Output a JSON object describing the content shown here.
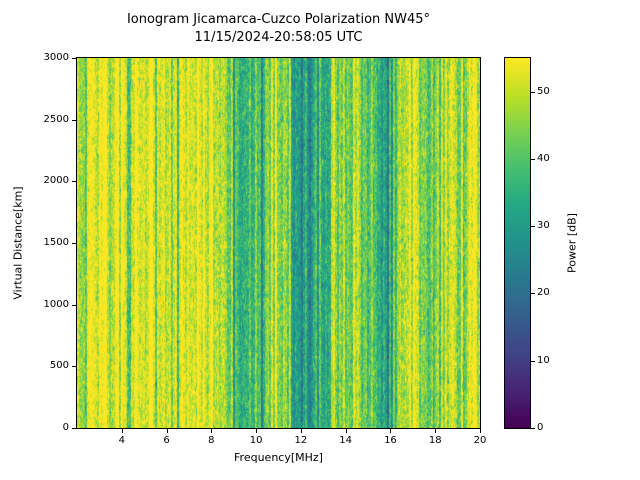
{
  "figure": {
    "title_line1": "Ionogram Jicamarca-Cuzco Polarization NW45°",
    "title_line2": "11/15/2024-20:58:05 UTC",
    "background": "#ffffff"
  },
  "chart_data": {
    "type": "heatmap",
    "title": "Ionogram Jicamarca-Cuzco Polarization NW45°",
    "subtitle": "11/15/2024-20:58:05 UTC",
    "xlabel": "Frequency[MHz]",
    "ylabel": "Virtual Distance[km]",
    "colorbar_label": "Power [dB]",
    "xlim": [
      2,
      20
    ],
    "ylim": [
      0,
      3000
    ],
    "clim": [
      0,
      55
    ],
    "x_ticks": [
      4,
      6,
      8,
      10,
      12,
      14,
      16,
      18,
      20
    ],
    "y_ticks": [
      0,
      500,
      1000,
      1500,
      2000,
      2500,
      3000
    ],
    "colorbar_ticks": [
      0,
      10,
      20,
      30,
      40,
      50
    ],
    "colormap": "viridis",
    "colormap_stops": [
      "#440154",
      "#482475",
      "#414487",
      "#355f8d",
      "#2a788e",
      "#21918c",
      "#22a884",
      "#44bf70",
      "#7ad151",
      "#bddf26",
      "#fde725"
    ],
    "power_profile": [
      [
        2.0,
        47
      ],
      [
        2.3,
        42
      ],
      [
        2.6,
        50
      ],
      [
        3.0,
        54
      ],
      [
        4.0,
        54
      ],
      [
        4.3,
        42
      ],
      [
        4.6,
        52
      ],
      [
        5.0,
        54
      ],
      [
        6.0,
        54
      ],
      [
        6.4,
        46
      ],
      [
        6.8,
        53
      ],
      [
        7.8,
        54
      ],
      [
        8.4,
        50
      ],
      [
        8.8,
        44
      ],
      [
        9.2,
        37
      ],
      [
        9.7,
        35
      ],
      [
        10.2,
        39
      ],
      [
        10.7,
        50
      ],
      [
        11.2,
        49
      ],
      [
        11.6,
        39
      ],
      [
        12.0,
        33
      ],
      [
        12.4,
        31
      ],
      [
        12.8,
        35
      ],
      [
        13.2,
        40
      ],
      [
        13.6,
        44
      ],
      [
        14.0,
        42
      ],
      [
        14.4,
        45
      ],
      [
        14.8,
        40
      ],
      [
        15.3,
        38
      ],
      [
        15.8,
        33
      ],
      [
        16.2,
        36
      ],
      [
        16.6,
        51
      ],
      [
        17.0,
        53
      ],
      [
        17.4,
        48
      ],
      [
        17.7,
        36
      ],
      [
        18.0,
        46
      ],
      [
        18.4,
        43
      ],
      [
        18.8,
        52
      ],
      [
        19.2,
        46
      ],
      [
        19.6,
        53
      ],
      [
        20.0,
        50
      ]
    ],
    "noise": {
      "column_sigma": 5,
      "pixel_sigma": 4,
      "seed": 42
    }
  }
}
